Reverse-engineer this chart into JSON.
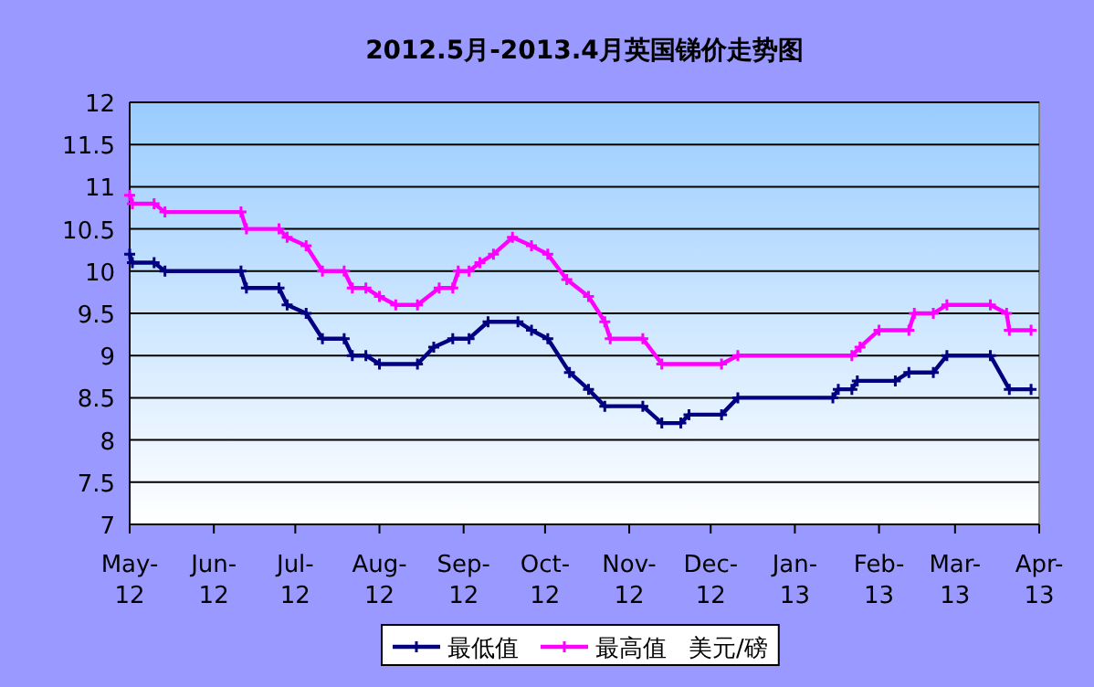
{
  "chart_data": {
    "type": "line",
    "title": "2012.5月-2013.4月英国锑价走势图",
    "legend_title": "美元/磅",
    "legend": "bottom",
    "grid": "y",
    "marker": "cross",
    "line_style": "solid",
    "xlim": [
      "2012-05-01",
      "2013-04-01"
    ],
    "ylim": [
      7,
      12
    ],
    "yticks": [
      7,
      7.5,
      8,
      8.5,
      9,
      9.5,
      10,
      10.5,
      11,
      11.5,
      12
    ],
    "xticks": [
      {
        "value": "2012-05-01",
        "label": "May-12"
      },
      {
        "value": "2012-06-01",
        "label": "Jun-12"
      },
      {
        "value": "2012-07-01",
        "label": "Jul-12"
      },
      {
        "value": "2012-08-01",
        "label": "Aug-12"
      },
      {
        "value": "2012-09-01",
        "label": "Sep-12"
      },
      {
        "value": "2012-10-01",
        "label": "Oct-12"
      },
      {
        "value": "2012-11-01",
        "label": "Nov-12"
      },
      {
        "value": "2012-12-01",
        "label": "Dec-12"
      },
      {
        "value": "2013-01-01",
        "label": "Jan-13"
      },
      {
        "value": "2013-02-01",
        "label": "Feb-13"
      },
      {
        "value": "2013-03-01",
        "label": "Mar-13"
      },
      {
        "value": "2013-04-01",
        "label": "Apr-13"
      }
    ],
    "series": [
      {
        "name": "最低值",
        "color": "#000080",
        "x": [
          "2012-05-01",
          "2012-05-02",
          "2012-05-10",
          "2012-05-14",
          "2012-06-11",
          "2012-06-13",
          "2012-06-25",
          "2012-06-28",
          "2012-07-05",
          "2012-07-11",
          "2012-07-19",
          "2012-07-22",
          "2012-07-27",
          "2012-08-01",
          "2012-08-15",
          "2012-08-21",
          "2012-08-28",
          "2012-09-03",
          "2012-09-10",
          "2012-09-21",
          "2012-09-26",
          "2012-10-02",
          "2012-10-10",
          "2012-10-17",
          "2012-10-23",
          "2012-11-06",
          "2012-11-13",
          "2012-11-20",
          "2012-11-23",
          "2012-12-05",
          "2012-12-11",
          "2013-01-15",
          "2013-01-17",
          "2013-01-22",
          "2013-01-24",
          "2013-02-07",
          "2013-02-12",
          "2013-02-21",
          "2013-02-26",
          "2013-03-14",
          "2013-03-21",
          "2013-03-29"
        ],
        "values": [
          10.2,
          10.1,
          10.1,
          10.0,
          10.0,
          9.8,
          9.8,
          9.6,
          9.5,
          9.2,
          9.2,
          9.0,
          9.0,
          8.9,
          8.9,
          9.1,
          9.2,
          9.2,
          9.4,
          9.4,
          9.3,
          9.2,
          8.8,
          8.6,
          8.4,
          8.4,
          8.2,
          8.2,
          8.3,
          8.3,
          8.5,
          8.5,
          8.6,
          8.6,
          8.7,
          8.7,
          8.8,
          8.8,
          9.0,
          9.0,
          8.6,
          8.6
        ]
      },
      {
        "name": "最高值",
        "color": "#ff00ff",
        "x": [
          "2012-05-01",
          "2012-05-02",
          "2012-05-10",
          "2012-05-14",
          "2012-06-11",
          "2012-06-13",
          "2012-06-25",
          "2012-06-28",
          "2012-07-05",
          "2012-07-11",
          "2012-07-19",
          "2012-07-22",
          "2012-07-27",
          "2012-08-01",
          "2012-08-07",
          "2012-08-15",
          "2012-08-23",
          "2012-08-28",
          "2012-08-30",
          "2012-09-03",
          "2012-09-07",
          "2012-09-12",
          "2012-09-19",
          "2012-09-26",
          "2012-10-02",
          "2012-10-09",
          "2012-10-17",
          "2012-10-23",
          "2012-10-25",
          "2012-11-06",
          "2012-11-13",
          "2012-12-05",
          "2012-12-11",
          "2013-01-22",
          "2013-01-25",
          "2013-02-01",
          "2013-02-12",
          "2013-02-14",
          "2013-02-21",
          "2013-02-26",
          "2013-03-14",
          "2013-03-20",
          "2013-03-21",
          "2013-03-29"
        ],
        "values": [
          10.9,
          10.8,
          10.8,
          10.7,
          10.7,
          10.5,
          10.5,
          10.4,
          10.3,
          10.0,
          10.0,
          9.8,
          9.8,
          9.7,
          9.6,
          9.6,
          9.8,
          9.8,
          10.0,
          10.0,
          10.1,
          10.2,
          10.4,
          10.3,
          10.2,
          9.9,
          9.7,
          9.4,
          9.2,
          9.2,
          8.9,
          8.9,
          9.0,
          9.0,
          9.1,
          9.3,
          9.3,
          9.5,
          9.5,
          9.6,
          9.6,
          9.5,
          9.3,
          9.3
        ]
      }
    ]
  }
}
